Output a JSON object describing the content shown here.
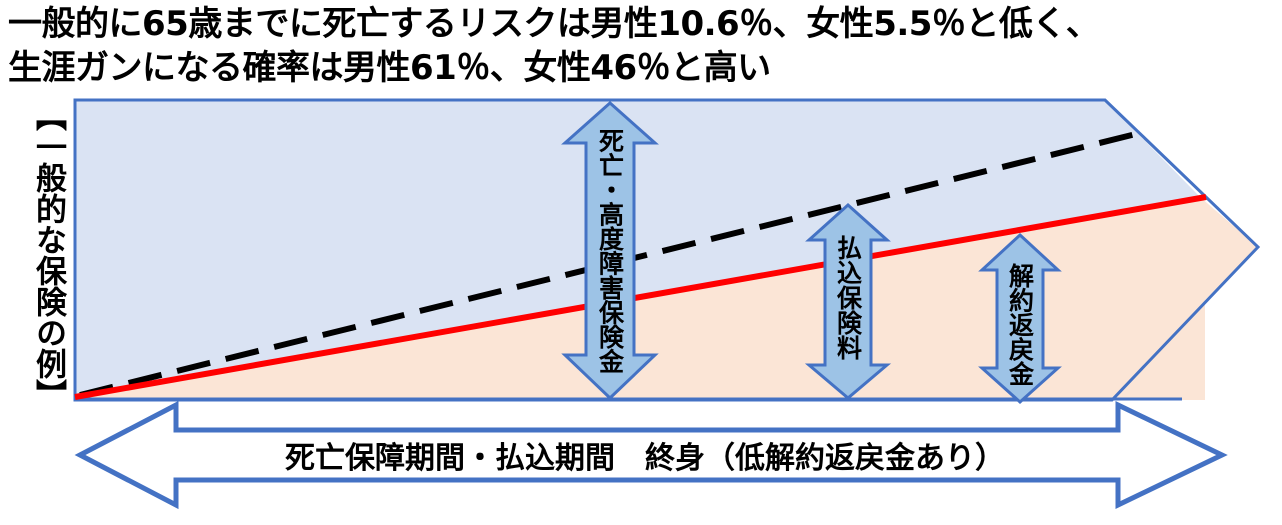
{
  "title_lines": [
    "一般的に65歳までに死亡するリスクは男性10.6％、女性5.5％と低く、",
    "生涯ガンになる確率は男性61％、女性46％と高い"
  ],
  "side_label": "【一般的な保険の例】",
  "arrows": {
    "death_benefit": "死亡・高度障害保険金",
    "premiums_paid": "払込保険料",
    "surrender_value": "解約返戻金"
  },
  "period_label": "死亡保障期間・払込期間　終身（低解約返戻金あり）",
  "colors": {
    "upper_area": "#dae3f3",
    "lower_area": "#fbe5d6",
    "outline": "#4472c4",
    "arrow_fill": "#9dc3e6",
    "premium_line": "#ff0000",
    "dashed_line": "#000000"
  }
}
